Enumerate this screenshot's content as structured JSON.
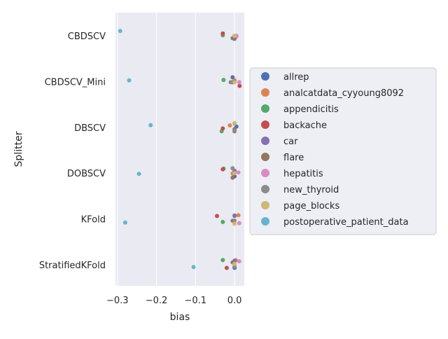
{
  "chart_data": {
    "type": "scatter",
    "subtype": "strip",
    "xlabel": "bias",
    "ylabel": "Splitter",
    "xlim": [
      -0.305,
      0.025
    ],
    "xticks": [
      -0.3,
      -0.2,
      -0.1,
      0.0
    ],
    "xtick_labels": [
      "−0.3",
      "−0.2",
      "−0.1",
      "0.0"
    ],
    "grid": true,
    "legend_position": "right",
    "categories": [
      "CBDSCV",
      "CBDSCV_Mini",
      "DBSCV",
      "DOBSCV",
      "KFold",
      "StratifiedKFold"
    ],
    "series": [
      {
        "name": "allrep",
        "color": "#4c72b0",
        "values": [
          0.0,
          -0.005,
          0.005,
          0.0,
          0.0,
          0.0
        ]
      },
      {
        "name": "analcatdata_cyyoung8092",
        "color": "#dd8452",
        "values": [
          0.005,
          0.0,
          -0.012,
          -0.005,
          0.01,
          0.003
        ]
      },
      {
        "name": "appendicitis",
        "color": "#55a868",
        "values": [
          -0.03,
          -0.028,
          -0.033,
          -0.028,
          -0.03,
          -0.03
        ]
      },
      {
        "name": "backache",
        "color": "#c44e52",
        "values": [
          -0.03,
          0.013,
          -0.03,
          -0.03,
          -0.045,
          -0.02
        ]
      },
      {
        "name": "car",
        "color": "#8172b3",
        "values": [
          0.0,
          0.0,
          0.0,
          0.0,
          0.0,
          0.0
        ]
      },
      {
        "name": "flare",
        "color": "#937860",
        "values": [
          -0.005,
          -0.005,
          0.0,
          -0.005,
          -0.005,
          -0.005
        ]
      },
      {
        "name": "hepatitis",
        "color": "#da8bc3",
        "values": [
          0.005,
          0.012,
          0.0,
          0.01,
          0.012,
          0.012
        ]
      },
      {
        "name": "new_thyroid",
        "color": "#8c8c8c",
        "values": [
          0.0,
          -0.01,
          0.0,
          -0.005,
          0.0,
          0.0
        ]
      },
      {
        "name": "page_blocks",
        "color": "#ccb974",
        "values": [
          0.0,
          0.0,
          0.0,
          0.0,
          0.0,
          0.0
        ]
      },
      {
        "name": "postoperative_patient_data",
        "color": "#64b5cd",
        "values": [
          -0.293,
          -0.27,
          -0.215,
          -0.245,
          -0.28,
          -0.105
        ]
      }
    ]
  }
}
